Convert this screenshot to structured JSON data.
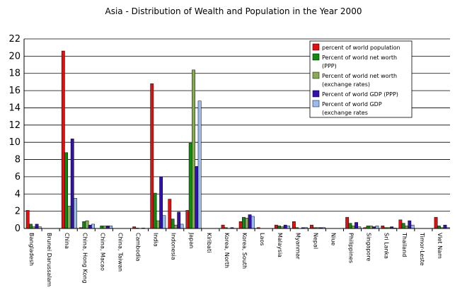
{
  "chart_data": {
    "type": "bar",
    "title": "Asia - Distribution of Wealth and Population in the Year 2000",
    "xlabel": "",
    "ylabel": "",
    "ylim": [
      0,
      22
    ],
    "y_ticks": [
      "0",
      "2",
      "4",
      "6",
      "8",
      "10",
      "12",
      "14",
      "16",
      "18",
      "20",
      "22"
    ],
    "grid": true,
    "legend_position": "top-right",
    "categories": [
      "Bangladesh",
      "Brunei Darussalam",
      "China",
      "China, Hong Kong",
      "China, Macao",
      "China, Taiwan",
      "Cambodia",
      "India",
      "Indonesia",
      "Japan",
      "Kiribati",
      "Korea, North",
      "Korea, South",
      "Laos",
      "Malaysia",
      "Myanmar",
      "Nepal",
      "Niue",
      "Philippines",
      "Singapore",
      "Sri Lanka",
      "Thailand",
      "Timor-Leste",
      "Viet Nam"
    ],
    "series": [
      {
        "name": "percent of world population",
        "legend": [
          "percent of world population"
        ],
        "color": "#dd1111",
        "values": [
          2.1,
          0,
          20.6,
          0.1,
          0,
          0,
          0.2,
          16.8,
          3.4,
          2.1,
          0,
          0.4,
          0.8,
          0.1,
          0.4,
          0.8,
          0.4,
          0,
          1.3,
          0.1,
          0.3,
          1.0,
          0,
          1.3
        ]
      },
      {
        "name": "Percent of world net worth (PPP)",
        "legend": [
          "Percent of world net worth",
          "(PPP)"
        ],
        "color": "#118811",
        "values": [
          0.5,
          0,
          8.8,
          0.8,
          0.3,
          0,
          0.05,
          4.1,
          1.1,
          9.9,
          0,
          0.1,
          1.3,
          0,
          0.3,
          0.1,
          0.1,
          0,
          0.6,
          0.3,
          0.1,
          0.6,
          0,
          0.3
        ]
      },
      {
        "name": "Percent of world net worth (exchange rates)",
        "legend": [
          "Percent of world net worth",
          "(exchange rates)"
        ],
        "color": "#88aa55",
        "values": [
          0.2,
          0,
          2.6,
          0.9,
          0.3,
          0,
          0,
          0.9,
          0.4,
          18.4,
          0,
          0,
          1.2,
          0,
          0.2,
          0,
          0.1,
          0,
          0.3,
          0.3,
          0.1,
          0.3,
          0,
          0.1
        ]
      },
      {
        "name": "Percent of world GDP (PPP)",
        "legend": [
          "Percent of world GDP (PPP)"
        ],
        "color": "#3311aa",
        "values": [
          0.5,
          0,
          10.4,
          0.4,
          0.3,
          0,
          0.05,
          6.0,
          1.9,
          7.2,
          0,
          0.1,
          1.6,
          0,
          0.4,
          0.1,
          0.1,
          0,
          0.7,
          0.2,
          0.2,
          0.9,
          0,
          0.4
        ]
      },
      {
        "name": "Percent of world GDP (exchange rates)",
        "legend": [
          "Percent of world GDP",
          "(exchange rates"
        ],
        "color": "#99bbee",
        "values": [
          0.2,
          0,
          3.5,
          0.5,
          0.3,
          0,
          0,
          1.5,
          0.5,
          14.8,
          0,
          0,
          1.4,
          0,
          0.3,
          0.1,
          0.1,
          0,
          0.2,
          0.3,
          0.05,
          0.4,
          0,
          0.1
        ]
      }
    ]
  }
}
